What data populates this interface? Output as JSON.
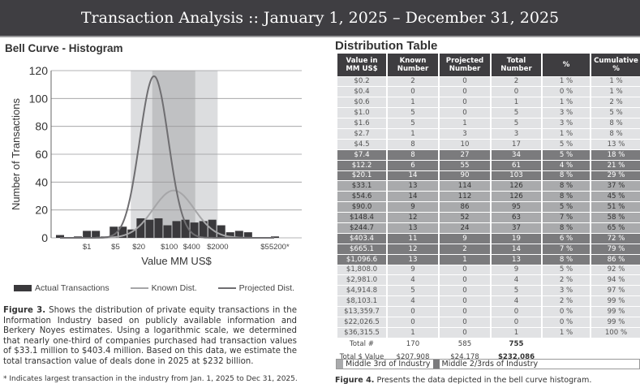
{
  "header": {
    "title": "Transaction Analysis  ::  January 1, 2025 – December 31, 2025"
  },
  "left": {
    "title": "Bell Curve - Histogram",
    "legend": {
      "actual": "Actual Transactions",
      "known": "Known Dist.",
      "projected": "Projected Dist."
    },
    "caption_bold": "Figure 3.",
    "caption": " Shows the distribution of private equity transactions in the Information Industry based on publicly available information and Berkery Noyes estimates. Using a logarithmic scale, we determined that nearly one-third of companies purchased had transaction values of $33.1 million to $403.4 million. Based on this data, we estimate the total transaction value of deals done in 2025 at $232 billion.",
    "footnote": "* Indicates largest transaction in the industry from Jan. 1, 2025 to Dec 31, 2025."
  },
  "chart_data": {
    "type": "bar",
    "title": "Bell Curve - Histogram",
    "xlabel": "Value MM US$",
    "ylabel": "Number of Transactions",
    "ylim": [
      0,
      120
    ],
    "yticks": [
      0,
      20,
      40,
      60,
      80,
      100,
      120
    ],
    "grid": true,
    "xscale": "log (bins)",
    "bins": [
      "$0.2",
      "$0.4",
      "$0.6",
      "$1.0",
      "$1.6",
      "$2.7",
      "$4.5",
      "$7.4",
      "$12.2",
      "$20.1",
      "$33.1",
      "$54.6",
      "$90.0",
      "$148.4",
      "$244.7",
      "$403.4",
      "$665.1",
      "$1,096.6",
      "$1,808.0",
      "$2,981.0",
      "$4,914.8",
      "$8,103.1",
      "$13,359.7",
      "$22,026.5",
      "$36,315.5"
    ],
    "values": [
      2,
      0,
      1,
      5,
      5,
      1,
      8,
      8,
      6,
      14,
      13,
      14,
      9,
      12,
      13,
      11,
      12,
      13,
      9,
      4,
      5,
      4,
      0,
      0,
      1
    ],
    "xticks": [
      {
        "label": "$1",
        "bin": 3
      },
      {
        "label": "$5",
        "bin": 6.2
      },
      {
        "label": "$20",
        "bin": 8.8
      },
      {
        "label": "$100",
        "bin": 12.2
      },
      {
        "label": "$400",
        "bin": 14.7
      },
      {
        "label": "$2000",
        "bin": 17.6
      },
      {
        "label": "$55200*",
        "bin": 24
      }
    ],
    "known_dist": {
      "peak": 34,
      "center_bin": 12.7,
      "sigma_bins": 2.3
    },
    "projected_dist": {
      "peak": 116,
      "center_bin": 10.5,
      "sigma_bins": 1.6
    },
    "bands": [
      {
        "name": "Middle 2/3rds of Industry",
        "from_bin": 7.9,
        "to_bin": 17.6
      },
      {
        "name": "Middle 3rd of Industry",
        "from_bin": 10.3,
        "to_bin": 15.1
      }
    ],
    "legend": "bottom",
    "colors": {
      "bar": "#3a393c",
      "known": "#a6a6a8",
      "projected": "#6f6e71",
      "band_light": "#dcdddf",
      "band_dark": "#c0c1c3"
    }
  },
  "table": {
    "title": "Distribution Table",
    "headers": [
      "Value in MM US$",
      "Known Number",
      "Projected Number",
      "Total Number",
      "%",
      "Cumulative %"
    ],
    "rows": [
      [
        "$0.2",
        "2",
        "0",
        "2",
        "1 %",
        "1 %",
        "l"
      ],
      [
        "$0.4",
        "0",
        "0",
        "0",
        "0 %",
        "1 %",
        "l"
      ],
      [
        "$0.6",
        "1",
        "0",
        "1",
        "1 %",
        "2 %",
        "l"
      ],
      [
        "$1.0",
        "5",
        "0",
        "5",
        "3 %",
        "5 %",
        "l"
      ],
      [
        "$1.6",
        "5",
        "1",
        "5",
        "3 %",
        "8 %",
        "l"
      ],
      [
        "$2.7",
        "1",
        "3",
        "3",
        "1 %",
        "8 %",
        "l"
      ],
      [
        "$4.5",
        "8",
        "10",
        "17",
        "5 %",
        "13 %",
        "l"
      ],
      [
        "$7.4",
        "8",
        "27",
        "34",
        "5 %",
        "18 %",
        "d"
      ],
      [
        "$12.2",
        "6",
        "55",
        "61",
        "4 %",
        "21 %",
        "d"
      ],
      [
        "$20.1",
        "14",
        "90",
        "103",
        "8 %",
        "29 %",
        "d"
      ],
      [
        "$33.1",
        "13",
        "114",
        "126",
        "8 %",
        "37 %",
        "m"
      ],
      [
        "$54.6",
        "14",
        "112",
        "126",
        "8 %",
        "45 %",
        "m"
      ],
      [
        "$90.0",
        "9",
        "86",
        "95",
        "5 %",
        "51 %",
        "m"
      ],
      [
        "$148.4",
        "12",
        "52",
        "63",
        "7 %",
        "58 %",
        "m"
      ],
      [
        "$244.7",
        "13",
        "24",
        "37",
        "8 %",
        "65 %",
        "m"
      ],
      [
        "$403.4",
        "11",
        "9",
        "19",
        "6 %",
        "72 %",
        "d"
      ],
      [
        "$665.1",
        "12",
        "2",
        "14",
        "7 %",
        "79 %",
        "d"
      ],
      [
        "$1,096.6",
        "13",
        "1",
        "13",
        "8 %",
        "86 %",
        "d"
      ],
      [
        "$1,808.0",
        "9",
        "0",
        "9",
        "5 %",
        "92 %",
        "l"
      ],
      [
        "$2,981.0",
        "4",
        "0",
        "4",
        "2 %",
        "94 %",
        "l"
      ],
      [
        "$4,914.8",
        "5",
        "0",
        "5",
        "3 %",
        "97 %",
        "l"
      ],
      [
        "$8,103.1",
        "4",
        "0",
        "4",
        "2 %",
        "99 %",
        "l"
      ],
      [
        "$13,359.7",
        "0",
        "0",
        "0",
        "0 %",
        "99 %",
        "l"
      ],
      [
        "$22,026.5",
        "0",
        "0",
        "0",
        "0 %",
        "99 %",
        "l"
      ],
      [
        "$36,315.5",
        "1",
        "0",
        "1",
        "1 %",
        "100 %",
        "l"
      ]
    ],
    "total_count": {
      "label": "Total #",
      "known": "170",
      "projected": "585",
      "total": "755"
    },
    "total_value": {
      "label": "Total $ Value",
      "known": "$207,908",
      "projected": "$24,178",
      "total": "$232,086"
    },
    "band_legend": {
      "middle_third": "Middle 3rd of Industry",
      "middle_two_thirds": "Middle 2/3rds of Industry"
    },
    "caption_bold": "Figure 4.",
    "caption": " Presents the data depicted in the bell curve histogram."
  }
}
